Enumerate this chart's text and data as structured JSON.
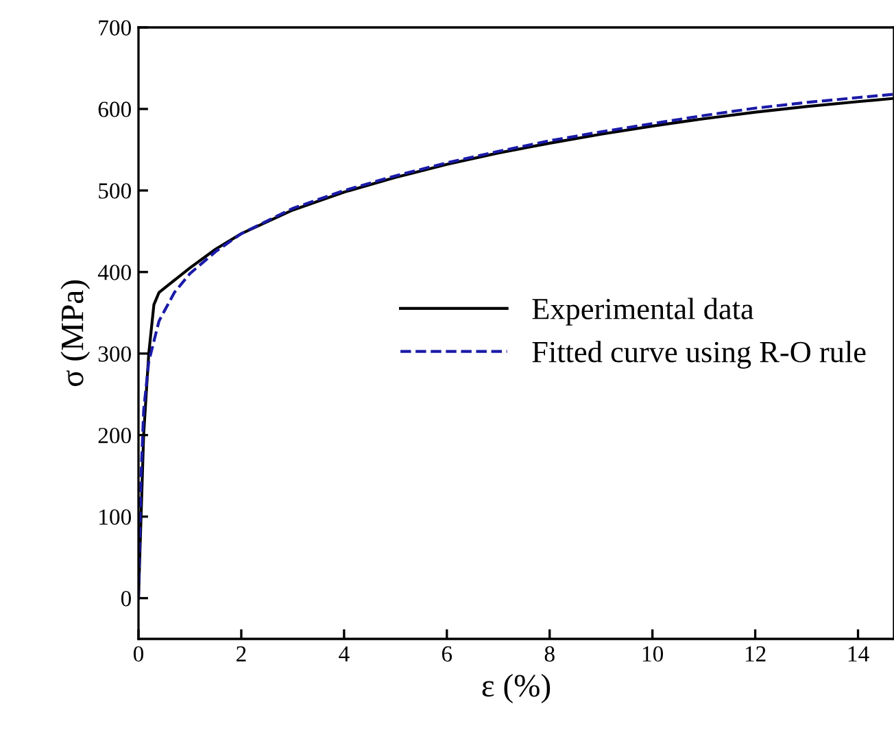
{
  "chart_data": {
    "type": "line",
    "xlabel": "ε (%)",
    "ylabel": "σ (MPa)",
    "xlim": [
      0,
      14.7
    ],
    "xticks": [
      0,
      2,
      4,
      6,
      8,
      10,
      12,
      14
    ],
    "ylim": [
      -50,
      700
    ],
    "yticks": [
      0,
      100,
      200,
      300,
      400,
      500,
      600,
      700
    ],
    "grid": false,
    "legend": "center right",
    "series": [
      {
        "name": "Experimental data",
        "color": "#000000",
        "line_style": "solid",
        "x": [
          0,
          0.05,
          0.1,
          0.2,
          0.3,
          0.4,
          0.6,
          1,
          1.5,
          2,
          3,
          4,
          5,
          6,
          7,
          8,
          9,
          10,
          11,
          12,
          13,
          14,
          14.7
        ],
        "values": [
          0,
          100,
          200,
          300,
          360,
          375,
          385,
          405,
          428,
          447,
          476,
          498,
          516,
          532,
          546,
          558,
          569,
          579,
          588,
          596,
          603,
          609,
          613
        ]
      },
      {
        "name": "Fitted curve using R-O rule",
        "color": "#1a1aa8",
        "line_style": "dashed",
        "x": [
          0,
          0.05,
          0.1,
          0.2,
          0.4,
          0.7,
          1,
          1.5,
          2,
          3,
          4,
          5,
          6,
          7,
          8,
          9,
          10,
          11,
          12,
          13,
          14,
          14.7
        ],
        "values": [
          0,
          150,
          230,
          290,
          340,
          375,
          398,
          425,
          447,
          478,
          500,
          518,
          534,
          548,
          561,
          572,
          582,
          592,
          601,
          608,
          614,
          618
        ]
      }
    ]
  }
}
